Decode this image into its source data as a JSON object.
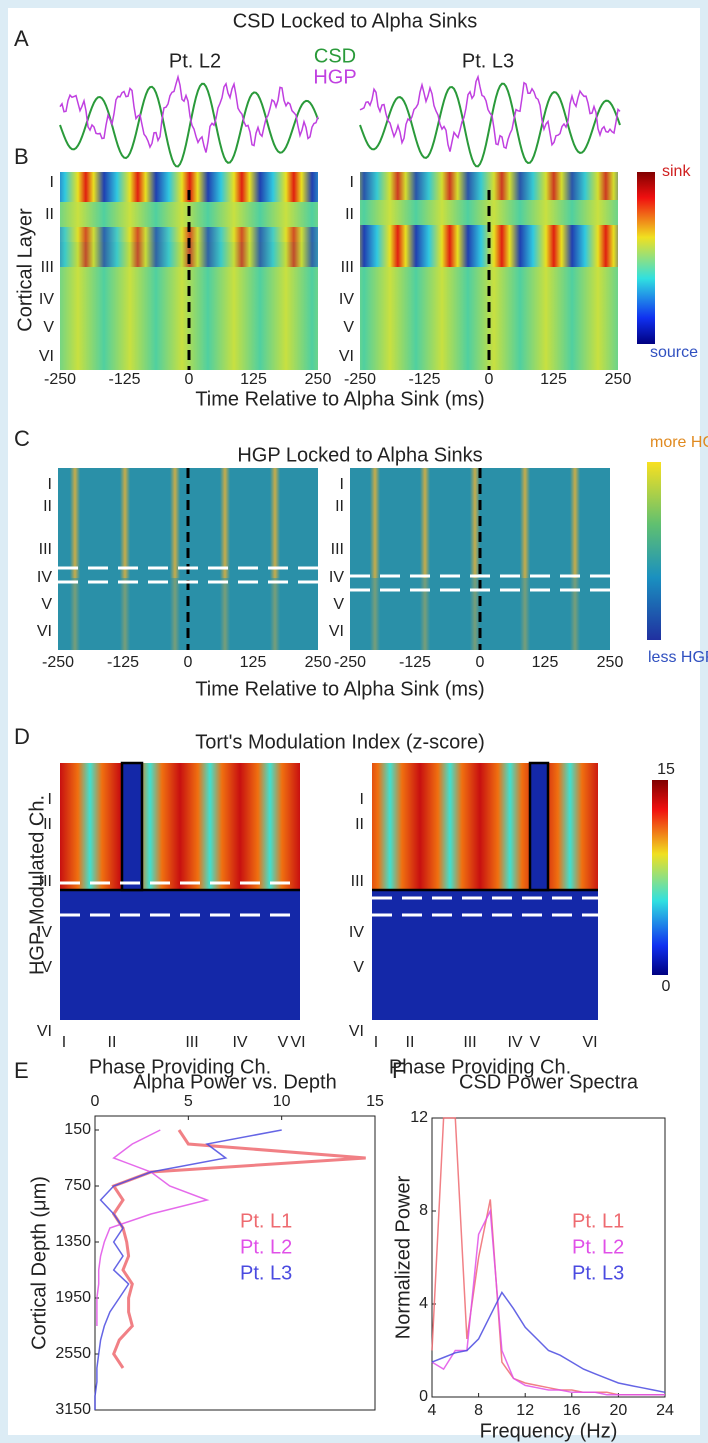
{
  "panels": {
    "A": {
      "label": "A",
      "title": "CSD Locked to Alpha Sinks",
      "patients": [
        "Pt. L2",
        "Pt. L3"
      ],
      "legend": [
        "CSD",
        "HGP"
      ]
    },
    "B": {
      "label": "B",
      "ylabel": "Cortical Layer",
      "layers": [
        "I",
        "II",
        "III",
        "IV",
        "V",
        "VI"
      ],
      "xlim": [
        -250,
        250
      ],
      "xticks": [
        -250,
        -125,
        0,
        125,
        250
      ],
      "xlabel": "Time Relative to Alpha Sink (ms)",
      "colorbar": [
        "sink",
        "source"
      ]
    },
    "C": {
      "label": "C",
      "title": "HGP Locked to Alpha Sinks",
      "xlim": [
        -250,
        250
      ],
      "xticks": [
        -250,
        -125,
        0,
        125,
        250
      ],
      "xlabel": "Time Relative to Alpha Sink (ms)",
      "colorbar": [
        "more HGP",
        "less HGP"
      ]
    },
    "D": {
      "label": "D",
      "title": "Tort's Modulation Index (z-score)",
      "ylabel": "HGP-Modulated Ch.",
      "xlabel": "Phase Providing Ch.",
      "colorbar_lim": [
        0,
        15
      ],
      "colorbar_ticks": [
        15,
        0
      ]
    }
  },
  "chart_data": [
    {
      "type": "line",
      "label": "E",
      "title": "Alpha Power vs. Depth",
      "ylabel": "Cortical Depth (μm)",
      "y": [
        150,
        300,
        450,
        600,
        750,
        900,
        1050,
        1200,
        1350,
        1500,
        1650,
        1800,
        1950,
        2100,
        2250,
        2400,
        2550,
        2700,
        2850,
        3000,
        3150
      ],
      "xlim": [
        0,
        15
      ],
      "xticks": [
        0,
        5,
        10,
        15
      ],
      "ylim": [
        0,
        3150
      ],
      "yticks": [
        150,
        750,
        1350,
        1950,
        2550,
        3150
      ],
      "y_inverted": true,
      "series": [
        {
          "name": "Pt. L1",
          "color": "#ee6a70",
          "values": [
            4.5,
            5,
            14.5,
            3,
            1,
            1.5,
            1,
            1.5,
            1.7,
            1.8,
            1.5,
            2,
            1.8,
            1.8,
            2,
            1.3,
            1,
            1.5,
            null,
            null,
            null
          ]
        },
        {
          "name": "Pt. L2",
          "color": "#e050e8",
          "values": [
            3.5,
            2,
            1,
            3,
            4,
            6,
            3,
            0.8,
            0.5,
            0.3,
            0.2,
            0.2,
            0.1,
            0.1,
            0.1,
            null,
            null,
            null,
            null,
            null,
            null
          ]
        },
        {
          "name": "Pt. L3",
          "color": "#4a4ae0",
          "values": [
            10,
            6,
            7,
            3,
            1,
            0.3,
            1,
            1.5,
            1,
            1.5,
            1,
            1.8,
            1.3,
            0.8,
            0.5,
            0.3,
            0.2,
            0.1,
            0.1,
            0,
            0
          ]
        }
      ]
    },
    {
      "type": "line",
      "label": "F",
      "title": "CSD Power Spectra",
      "ylabel": "Normalized Power",
      "xlabel": "Frequency (Hz)",
      "x": [
        4,
        5,
        6,
        7,
        8,
        9,
        10,
        11,
        12,
        13,
        14,
        15,
        16,
        17,
        18,
        19,
        20,
        21,
        22,
        23,
        24
      ],
      "xlim": [
        4,
        24
      ],
      "xticks": [
        4,
        8,
        12,
        16,
        20,
        24
      ],
      "ylim": [
        0,
        12
      ],
      "yticks": [
        0,
        4,
        8,
        12
      ],
      "series": [
        {
          "name": "Pt. L1",
          "color": "#ee6a70",
          "values": [
            2,
            12,
            12,
            2.5,
            6,
            8.5,
            1.5,
            0.8,
            0.6,
            0.5,
            0.4,
            0.3,
            0.3,
            0.2,
            0.2,
            0.2,
            0.1,
            0.1,
            0.1,
            0.1,
            0.1
          ]
        },
        {
          "name": "Pt. L2",
          "color": "#e050e8",
          "values": [
            1.5,
            1.2,
            2,
            2,
            7,
            8,
            2,
            0.8,
            0.5,
            0.4,
            0.3,
            0.3,
            0.2,
            0.2,
            0.2,
            0.1,
            0.1,
            0.1,
            0.1,
            0.1,
            0.1
          ]
        },
        {
          "name": "Pt. L3",
          "color": "#4a4ae0",
          "values": [
            1.5,
            1.7,
            1.9,
            2,
            2.5,
            3.5,
            4.5,
            3.8,
            3,
            2.5,
            2,
            1.8,
            1.5,
            1.2,
            1,
            0.8,
            0.6,
            0.5,
            0.4,
            0.3,
            0.2
          ]
        }
      ]
    }
  ]
}
